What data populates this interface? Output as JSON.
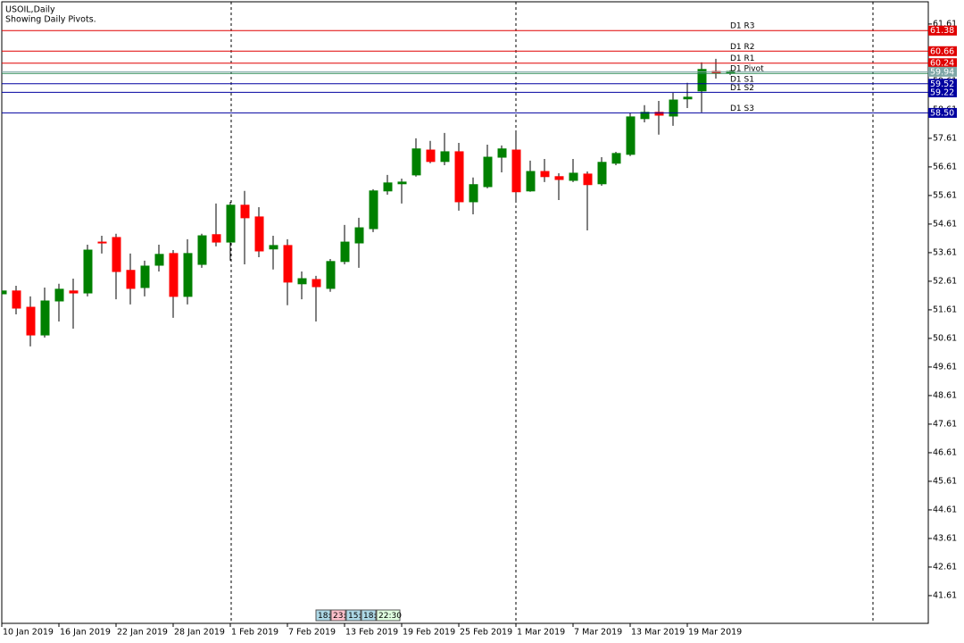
{
  "chart_data": {
    "type": "candlestick",
    "title": "USOIL,Daily",
    "subtitle": "Showing Daily Pivots.",
    "categories": [
      "10 Jan 2019",
      null,
      null,
      null,
      "16 Jan 2019",
      null,
      null,
      null,
      "22 Jan 2019",
      null,
      null,
      null,
      "28 Jan 2019",
      null,
      null,
      null,
      "1 Feb 2019",
      null,
      null,
      null,
      "7 Feb 2019",
      null,
      null,
      null,
      "13 Feb 2019",
      null,
      null,
      null,
      "19 Feb 2019",
      null,
      null,
      null,
      "25 Feb 2019",
      null,
      null,
      null,
      "1 Mar 2019",
      null,
      null,
      null,
      "7 Mar 2019",
      null,
      null,
      null,
      "13 Mar 2019",
      null,
      null,
      null,
      "19 Mar 2019",
      null,
      null,
      null
    ],
    "open": [
      52.17,
      52.27,
      51.7,
      50.73,
      51.92,
      52.27,
      52.2,
      53.98,
      54.14,
      52.99,
      52.39,
      53.17,
      53.58,
      52.08,
      53.2,
      54.24,
      53.98,
      55.27,
      54.86,
      53.74,
      53.86,
      52.52,
      52.67,
      52.36,
      53.3,
      53.95,
      54.45,
      55.77,
      56.02,
      56.33,
      57.2,
      56.8,
      57.14,
      55.39,
      55.92,
      56.95,
      57.2,
      55.77,
      56.45,
      56.27,
      56.14,
      56.36,
      56.02,
      56.74,
      57.05,
      58.3,
      58.52,
      58.39,
      58.99,
      59.27,
      59.95,
      59.89
    ],
    "high": [
      52.33,
      52.45,
      52.08,
      52.39,
      52.52,
      52.7,
      53.89,
      54.2,
      54.27,
      53.58,
      53.33,
      53.89,
      53.7,
      54.08,
      54.27,
      55.33,
      55.39,
      55.77,
      55.2,
      54.2,
      54.08,
      52.95,
      52.8,
      53.39,
      54.58,
      54.83,
      55.83,
      56.33,
      56.2,
      57.61,
      57.52,
      57.8,
      57.45,
      56.24,
      57.39,
      57.36,
      57.83,
      56.83,
      56.89,
      56.39,
      56.89,
      56.45,
      56.95,
      57.14,
      58.49,
      58.77,
      58.92,
      59.2,
      59.55,
      60.27,
      60.39,
      59.99
    ],
    "low": [
      52.08,
      51.45,
      50.33,
      50.64,
      51.2,
      50.95,
      52.08,
      53.58,
      51.98,
      51.8,
      52.08,
      52.95,
      51.33,
      51.8,
      53.08,
      53.83,
      53.33,
      53.2,
      53.45,
      53.02,
      51.77,
      51.98,
      51.2,
      52.24,
      53.2,
      53.08,
      54.33,
      55.64,
      55.33,
      56.27,
      56.74,
      56.67,
      55.08,
      54.95,
      55.86,
      56.42,
      55.36,
      55.74,
      56.08,
      55.45,
      56.08,
      54.39,
      55.95,
      56.67,
      56.99,
      58.17,
      57.74,
      58.05,
      58.67,
      58.52,
      59.7,
      59.83
    ],
    "close": [
      52.27,
      51.67,
      50.73,
      51.92,
      52.33,
      52.2,
      53.7,
      53.95,
      52.95,
      52.36,
      53.14,
      53.55,
      52.08,
      53.58,
      54.2,
      53.98,
      55.27,
      54.83,
      53.67,
      53.86,
      52.58,
      52.7,
      52.42,
      53.3,
      53.98,
      54.48,
      55.77,
      56.05,
      56.08,
      57.24,
      56.8,
      57.14,
      55.39,
      55.99,
      56.95,
      57.24,
      55.74,
      56.45,
      56.27,
      56.17,
      56.39,
      55.99,
      56.77,
      57.08,
      58.36,
      58.52,
      58.42,
      58.95,
      59.05,
      60.02,
      59.89,
      59.95
    ],
    "up_color": "#008000",
    "down_color": "#ff0000",
    "levels": {
      "names": [
        "D1 R3",
        "D1 R2",
        "D1 R1",
        "D1 Pivot",
        "D1 S1",
        "D1 S2",
        "D1 S3"
      ],
      "values": [
        61.38,
        60.66,
        60.24,
        59.88,
        59.52,
        59.22,
        58.5
      ],
      "value_labels": [
        "61.38",
        "60.66",
        "60.24",
        null,
        "59.52",
        "59.22",
        "58.50"
      ],
      "colors": [
        "#e00000",
        "#e00000",
        "#e00000",
        "#2e8b57",
        "#0000a0",
        "#0000a0",
        "#0000a0"
      ]
    },
    "bid": {
      "value": 59.94,
      "label": "59.94",
      "color": "#7fa7a7"
    },
    "ylim": [
      40.64,
      62.45
    ],
    "yticks": [
      41.61,
      42.61,
      43.61,
      44.61,
      45.61,
      46.61,
      47.61,
      48.61,
      49.61,
      50.61,
      51.61,
      52.61,
      53.61,
      54.61,
      55.61,
      56.61,
      57.61,
      58.61,
      59.61,
      60.61,
      61.61
    ],
    "grid": false,
    "time_boxes": {
      "labels": [
        "18:",
        "23:",
        "15:",
        "18:",
        "22:30"
      ],
      "colors": [
        "#add8e6",
        "#ffc0cb",
        "#add8e6",
        "#add8e6",
        "#e0ffe0"
      ]
    }
  }
}
